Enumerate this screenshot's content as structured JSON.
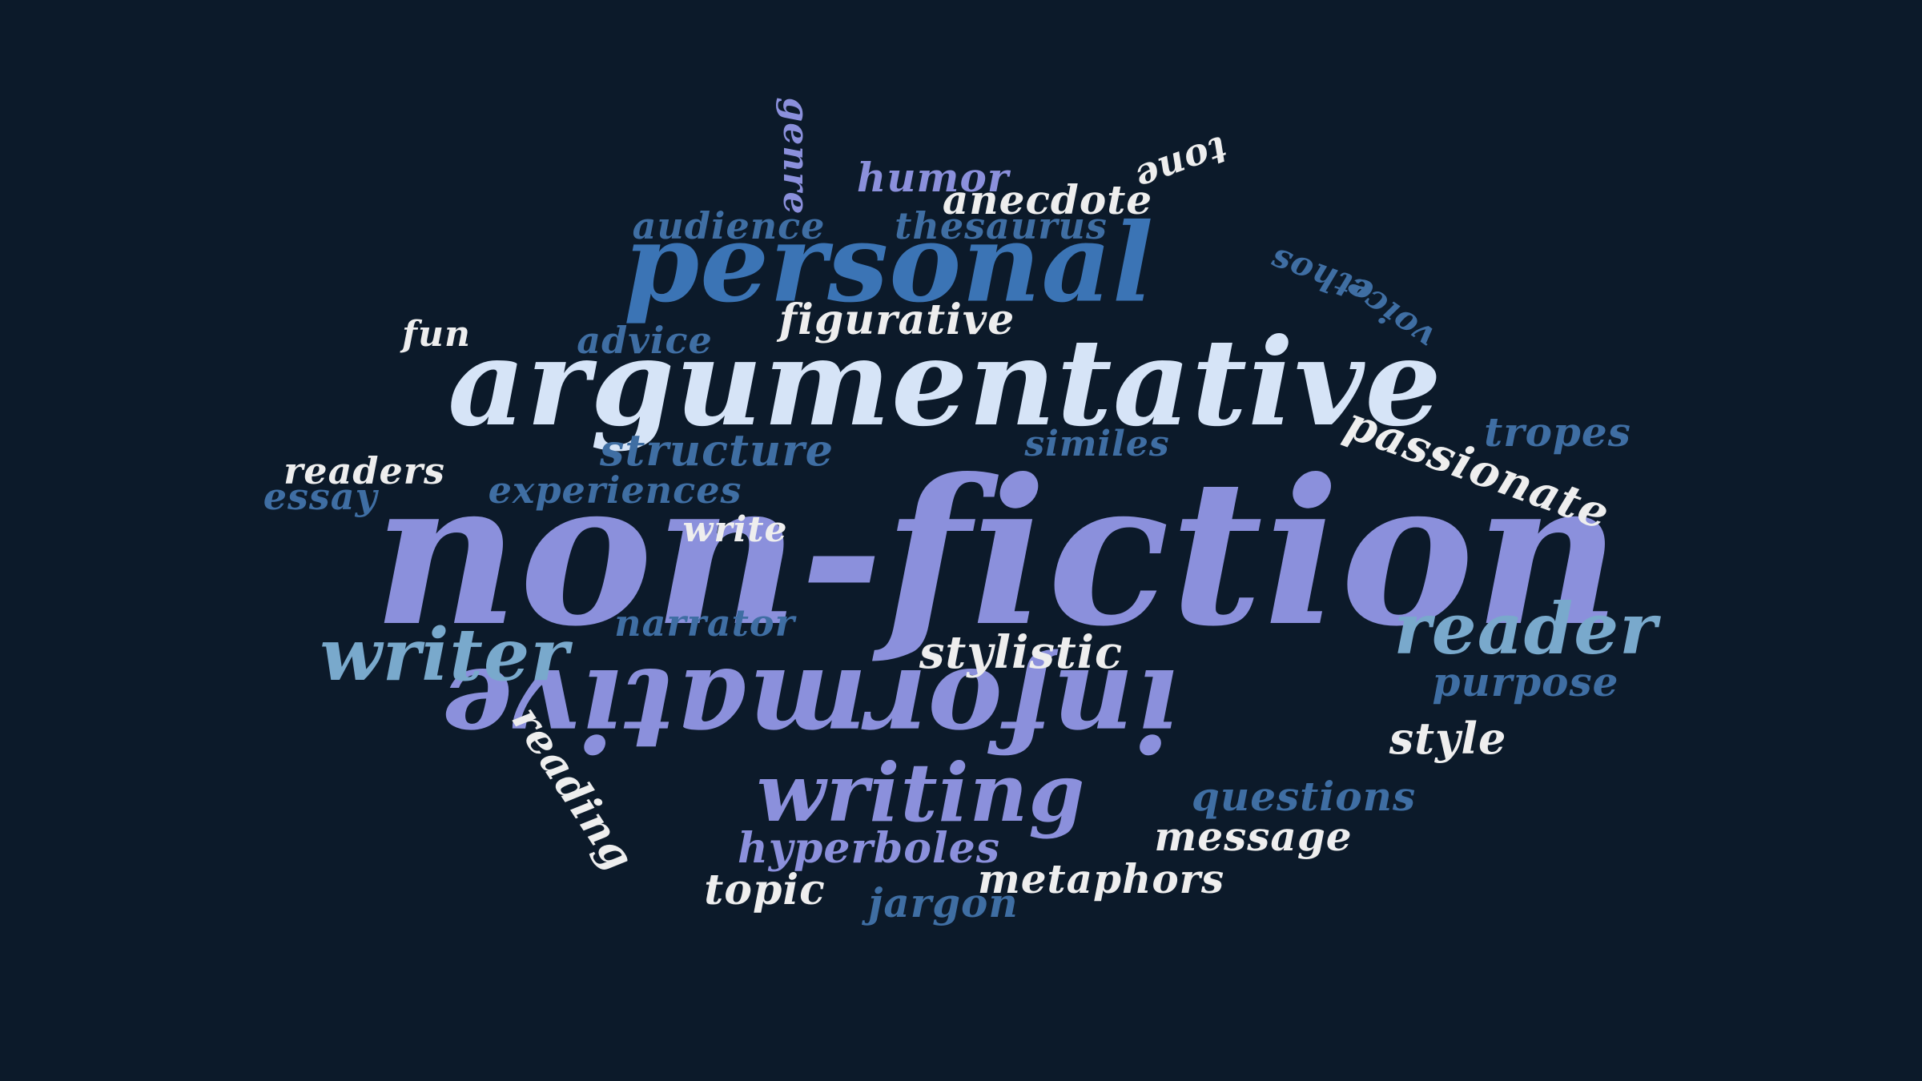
{
  "colors": {
    "background": "#0c1a2a",
    "periwinkle": "#8b90dc",
    "steel_blue": "#3b74b5",
    "pale_blue": "#d6e4f7",
    "light_blue": "#79a9cc",
    "mid_blue": "#3f6ea3",
    "white": "#eeeeee"
  },
  "words": {
    "non_fiction": "non-fiction",
    "argumentative": "argumentative",
    "personal": "personal",
    "informative": "informative",
    "writing": "writing",
    "reader": "reader",
    "writer": "writer",
    "figurative": "figurative",
    "structure": "structure",
    "similes": "similes",
    "passionate": "passionate",
    "tropes": "tropes",
    "readers": "readers",
    "essay": "essay",
    "experiences": "experiences",
    "write": "write",
    "narrator": "narrator",
    "stylistic": "stylistic",
    "purpose": "purpose",
    "style": "style",
    "reading": "reading",
    "questions": "questions",
    "message": "message",
    "hyperboles": "hyperboles",
    "metaphors": "metaphors",
    "topic": "topic",
    "jargon": "jargon",
    "humor": "humor",
    "anecdote": "anecdote",
    "genre": "genre",
    "tone": "tone",
    "audience": "audience",
    "thesaurus": "thesaurus",
    "ethos": "ethos",
    "voice": "voice",
    "fun": "fun",
    "advice": "advice"
  }
}
